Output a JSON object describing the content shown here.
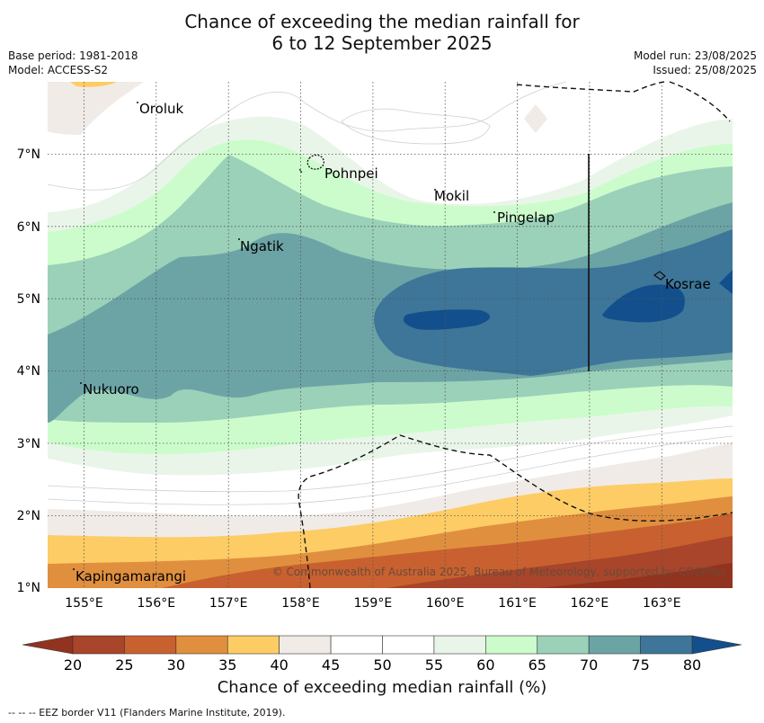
{
  "header": {
    "title_line1": "Chance of exceeding the median rainfall for",
    "title_line2": "6 to 12 September 2025",
    "base_period": "Base period: 1981-2018",
    "model": "Model: ACCESS-S2",
    "model_run": "Model run: 23/08/2025",
    "issued": "Issued: 25/08/2025"
  },
  "map": {
    "lat_labels": [
      "7°N",
      "6°N",
      "5°N",
      "4°N",
      "3°N",
      "2°N",
      "1°N"
    ],
    "lon_labels": [
      "155°E",
      "156°E",
      "157°E",
      "158°E",
      "159°E",
      "160°E",
      "161°E",
      "162°E",
      "163°E"
    ],
    "places": [
      "Oroluk",
      "Pohnpei",
      "Mokil",
      "Pingelap",
      "Ngatik",
      "Kosrae",
      "Nukuoro",
      "Kapingamarangi"
    ],
    "copyright": "© Commonwealth of Australia 2025, Bureau of Meteorology, supported by COSPPac"
  },
  "colorbar": {
    "ticks": [
      "20",
      "25",
      "30",
      "35",
      "40",
      "45",
      "50",
      "55",
      "60",
      "65",
      "70",
      "75",
      "80"
    ],
    "colors": [
      "#a8452a",
      "#c8612f",
      "#e08f3f",
      "#fdcc65",
      "#f0ebe6",
      "#ffffff",
      "#ffffff",
      "#eaf5ea",
      "#ccfccc",
      "#9bd1b9",
      "#6ca4a6",
      "#3d7699"
    ],
    "low_extension": "#92331f",
    "high_extension": "#124f8c",
    "title": "Chance of exceeding median rainfall (%)"
  },
  "footnote": "--  --  -- EEZ border V11 (Flanders Marine Institute, 2019)."
}
